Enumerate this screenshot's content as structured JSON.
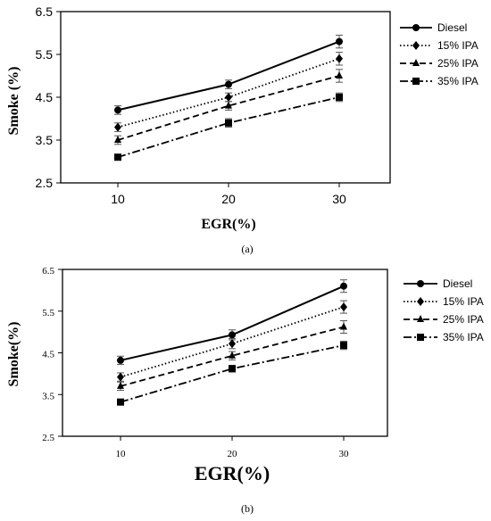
{
  "chart_data": [
    {
      "type": "line",
      "xlabel": "EGR(%)",
      "ylabel": "Smoke (%)",
      "caption": "(a)",
      "x": [
        10,
        20,
        30
      ],
      "x_ticks": [
        "10",
        "20",
        "30"
      ],
      "y_ticks": [
        "2.5",
        "3.5",
        "4.5",
        "5.5",
        "6.5"
      ],
      "ylim": [
        2.5,
        6.5
      ],
      "legend_position": "right",
      "series": [
        {
          "name": "Diesel",
          "values": [
            4.2,
            4.8,
            5.8
          ],
          "errors": [
            0.1,
            0.1,
            0.15
          ],
          "marker": "circle",
          "dash": "solid"
        },
        {
          "name": "15% IPA",
          "values": [
            3.8,
            4.5,
            5.4
          ],
          "errors": [
            0.1,
            0.1,
            0.15
          ],
          "marker": "diamond",
          "dash": "dotted"
        },
        {
          "name": "25% IPA",
          "values": [
            3.5,
            4.3,
            5.0
          ],
          "errors": [
            0.1,
            0.1,
            0.15
          ],
          "marker": "triangle",
          "dash": "dashed"
        },
        {
          "name": "35% IPA",
          "values": [
            3.1,
            3.9,
            4.5
          ],
          "errors": [
            0.05,
            0.1,
            0.1
          ],
          "marker": "square",
          "dash": "dashdot"
        }
      ]
    },
    {
      "type": "line",
      "xlabel": "EGR(%)",
      "ylabel": "Smoke(%)",
      "caption": "(b)",
      "x": [
        10,
        20,
        30
      ],
      "x_ticks": [
        "10",
        "20",
        "30"
      ],
      "y_ticks": [
        "2.5",
        "3.5",
        "4.5",
        "5.5",
        "6.5"
      ],
      "ylim": [
        2.5,
        6.5
      ],
      "legend_position": "right",
      "series": [
        {
          "name": "Diesel",
          "values": [
            4.32,
            4.93,
            6.1
          ],
          "errors": [
            0.1,
            0.12,
            0.15
          ],
          "marker": "circle",
          "dash": "solid"
        },
        {
          "name": "15% IPA",
          "values": [
            3.92,
            4.72,
            5.6
          ],
          "errors": [
            0.1,
            0.12,
            0.15
          ],
          "marker": "diamond",
          "dash": "dotted"
        },
        {
          "name": "25% IPA",
          "values": [
            3.7,
            4.43,
            5.12
          ],
          "errors": [
            0.1,
            0.1,
            0.15
          ],
          "marker": "triangle",
          "dash": "dashed"
        },
        {
          "name": "35% IPA",
          "values": [
            3.32,
            4.12,
            4.68
          ],
          "errors": [
            0.05,
            0.08,
            0.1
          ],
          "marker": "square",
          "dash": "dashdot"
        }
      ]
    }
  ]
}
